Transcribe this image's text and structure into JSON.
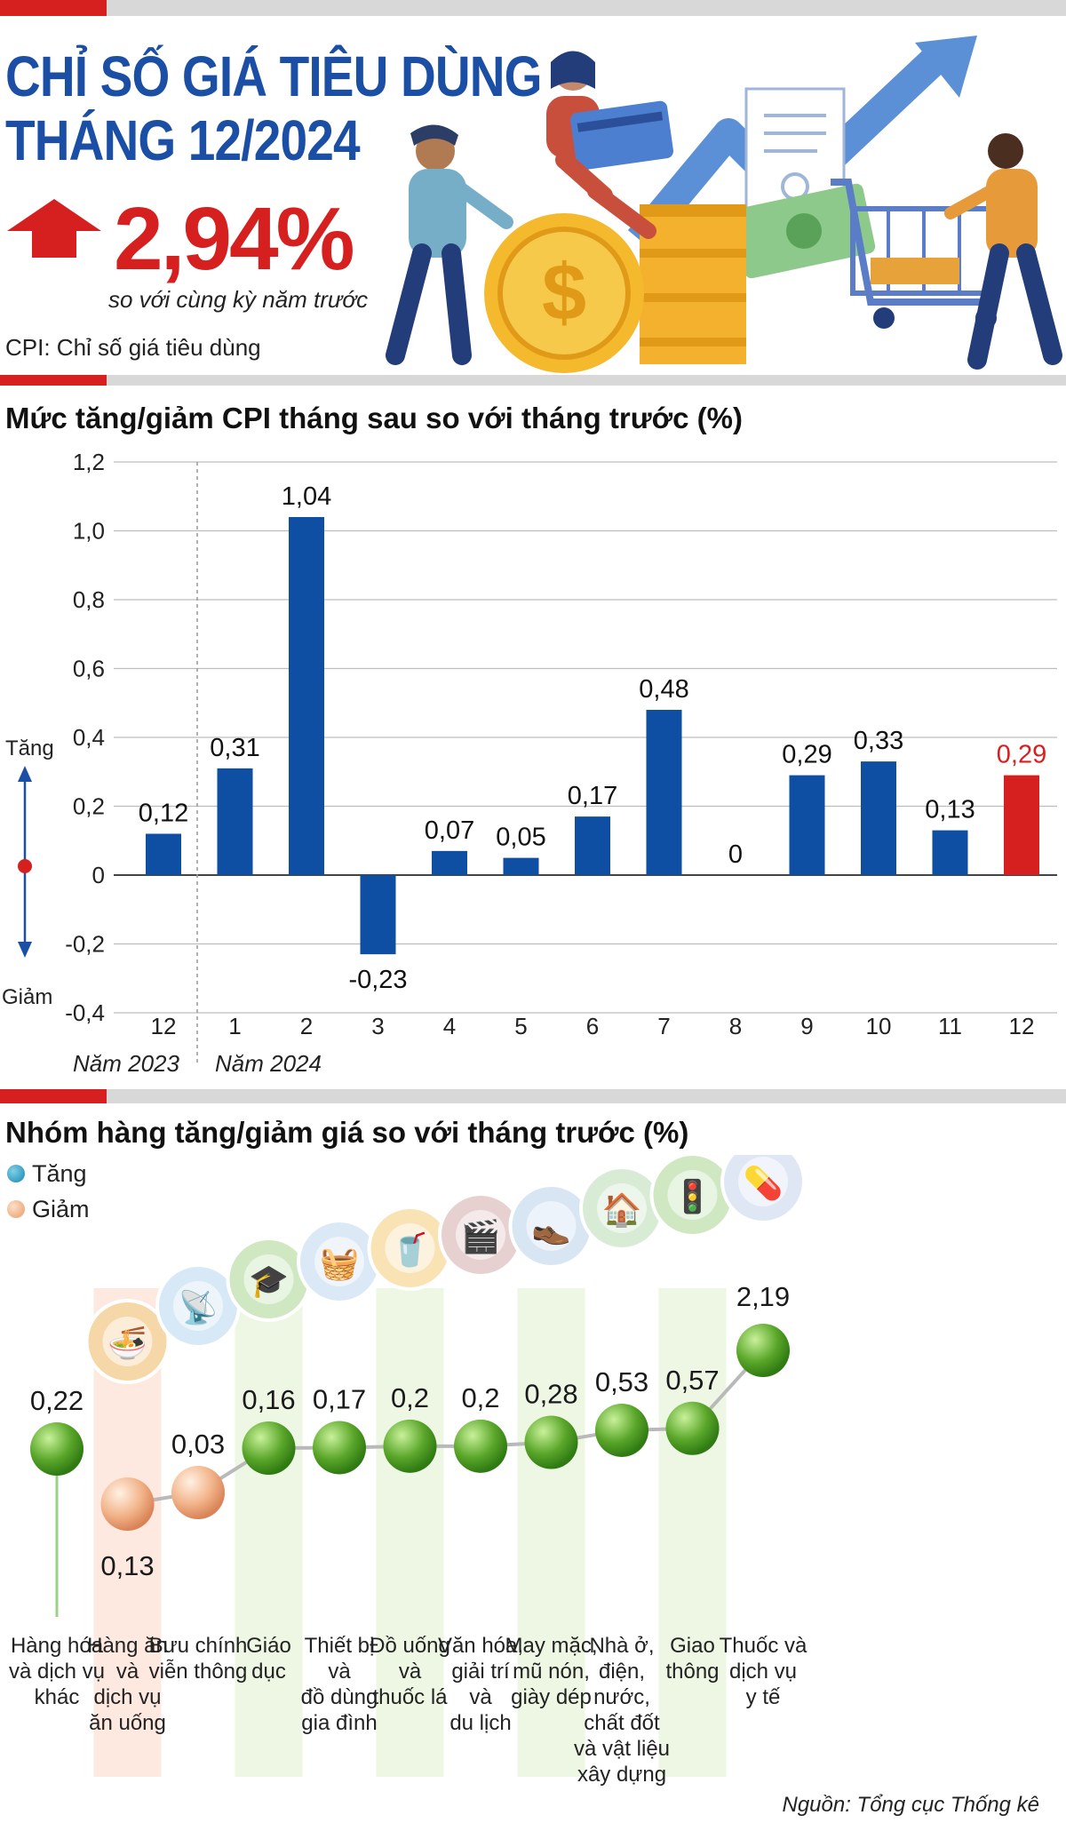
{
  "header": {
    "title_line1": "CHỈ SỐ GIÁ TIÊU DÙNG",
    "title_line2": "THÁNG 12/2024",
    "headline_value": "2,94%",
    "headline_subtitle": "so với cùng kỳ năm trước",
    "cpi_note": "CPI: Chỉ số giá tiêu dùng",
    "illustration": "people-shopping-coins-cart-icon"
  },
  "colors": {
    "brand_blue": "#1b4fa6",
    "bar_blue": "#0f4fa3",
    "accent_red": "#d6201f",
    "increase_green": "#5aa62a",
    "decrease_orange": "#f2b48a"
  },
  "section1": {
    "title": "Mức tăng/giảm CPI tháng sau so với tháng trước (%)",
    "increase_label": "Tăng",
    "decrease_label": "Giảm",
    "year_2023": "Năm 2023",
    "year_2024": "Năm 2024"
  },
  "section2": {
    "title": "Nhóm hàng tăng/giảm giá so với tháng trước (%)",
    "legend_increase": "Tăng",
    "legend_decrease": "Giảm"
  },
  "source": "Nguồn: Tổng cục Thống kê",
  "chart_data": [
    {
      "type": "bar",
      "title": "Mức tăng/giảm CPI tháng sau so với tháng trước (%)",
      "categories": [
        "12",
        "1",
        "2",
        "3",
        "4",
        "5",
        "6",
        "7",
        "8",
        "9",
        "10",
        "11",
        "12"
      ],
      "values": [
        0.12,
        0.31,
        1.04,
        -0.23,
        0.07,
        0.05,
        0.17,
        0.48,
        0,
        0.29,
        0.33,
        0.13,
        0.29
      ],
      "value_labels": [
        "0,12",
        "0,31",
        "1,04",
        "-0,23",
        "0,07",
        "0,05",
        "0,17",
        "0,48",
        "0",
        "0,29",
        "0,33",
        "0,13",
        "0,29"
      ],
      "highlight_index": 12,
      "ylim": [
        -0.4,
        1.2
      ],
      "yticks": [
        -0.4,
        -0.2,
        0,
        0.2,
        0.4,
        0.6,
        0.8,
        1.0,
        1.2
      ],
      "ytick_labels": [
        "-0,4",
        "-0,2",
        "0",
        "0,2",
        "0,4",
        "0,6",
        "0,8",
        "1,0",
        "1,2"
      ],
      "grid": true
    },
    {
      "type": "scatter",
      "title": "Nhóm hàng tăng/giảm giá so với tháng trước (%)",
      "categories": [
        "Hàng hóa và dịch vụ khác",
        "Hàng ăn và dịch vụ ăn uống",
        "Bưu chính viễn thông",
        "Giáo dục",
        "Thiết bị và đồ dùng gia đình",
        "Đồ uống và thuốc lá",
        "Văn hóa, giải trí và du lịch",
        "May mặc, mũ nón, giày dép",
        "Nhà ở, điện, nước, chất đốt và vật liệu xây dựng",
        "Giao thông",
        "Thuốc và dịch vụ y tế"
      ],
      "category_lines": [
        [
          "Hàng hóa",
          "và dịch vụ",
          "khác"
        ],
        [
          "Hàng ăn",
          "và",
          "dịch vụ",
          "ăn uống"
        ],
        [
          "Bưu chính",
          "viễn thông"
        ],
        [
          "Giáo",
          "dục"
        ],
        [
          "Thiết bị",
          "và",
          "đồ dùng",
          "gia đình"
        ],
        [
          "Đồ uống",
          "và",
          "thuốc lá"
        ],
        [
          "Văn hóa,",
          "giải trí",
          "và",
          "du lịch"
        ],
        [
          "May mặc,",
          "mũ nón,",
          "giày dép"
        ],
        [
          "Nhà ở,",
          "điện,",
          "nước,",
          "chất đốt",
          "và vật liệu",
          "xây dựng"
        ],
        [
          "Giao",
          "thông"
        ],
        [
          "Thuốc và",
          "dịch vụ",
          "y tế"
        ]
      ],
      "values": [
        0.22,
        -0.13,
        -0.03,
        0.16,
        0.17,
        0.2,
        0.2,
        0.28,
        0.53,
        0.57,
        2.19
      ],
      "value_labels": [
        "0,22",
        "0,13",
        "0,03",
        "0,16",
        "0,17",
        "0,2",
        "0,2",
        "0,28",
        "0,53",
        "0,57",
        "2,19"
      ],
      "direction": [
        "up",
        "down",
        "down",
        "up",
        "up",
        "up",
        "up",
        "up",
        "up",
        "up",
        "up"
      ],
      "icons": [
        "",
        "food-bowl-icon",
        "antenna-tower-icon",
        "graduation-cap-icon",
        "washing-machine-icon",
        "drinks-cigarettes-icon",
        "film-reel-icon",
        "shirt-shoes-icon",
        "house-electric-water-icon",
        "traffic-light-icon",
        "medicine-pill-icon"
      ]
    }
  ]
}
